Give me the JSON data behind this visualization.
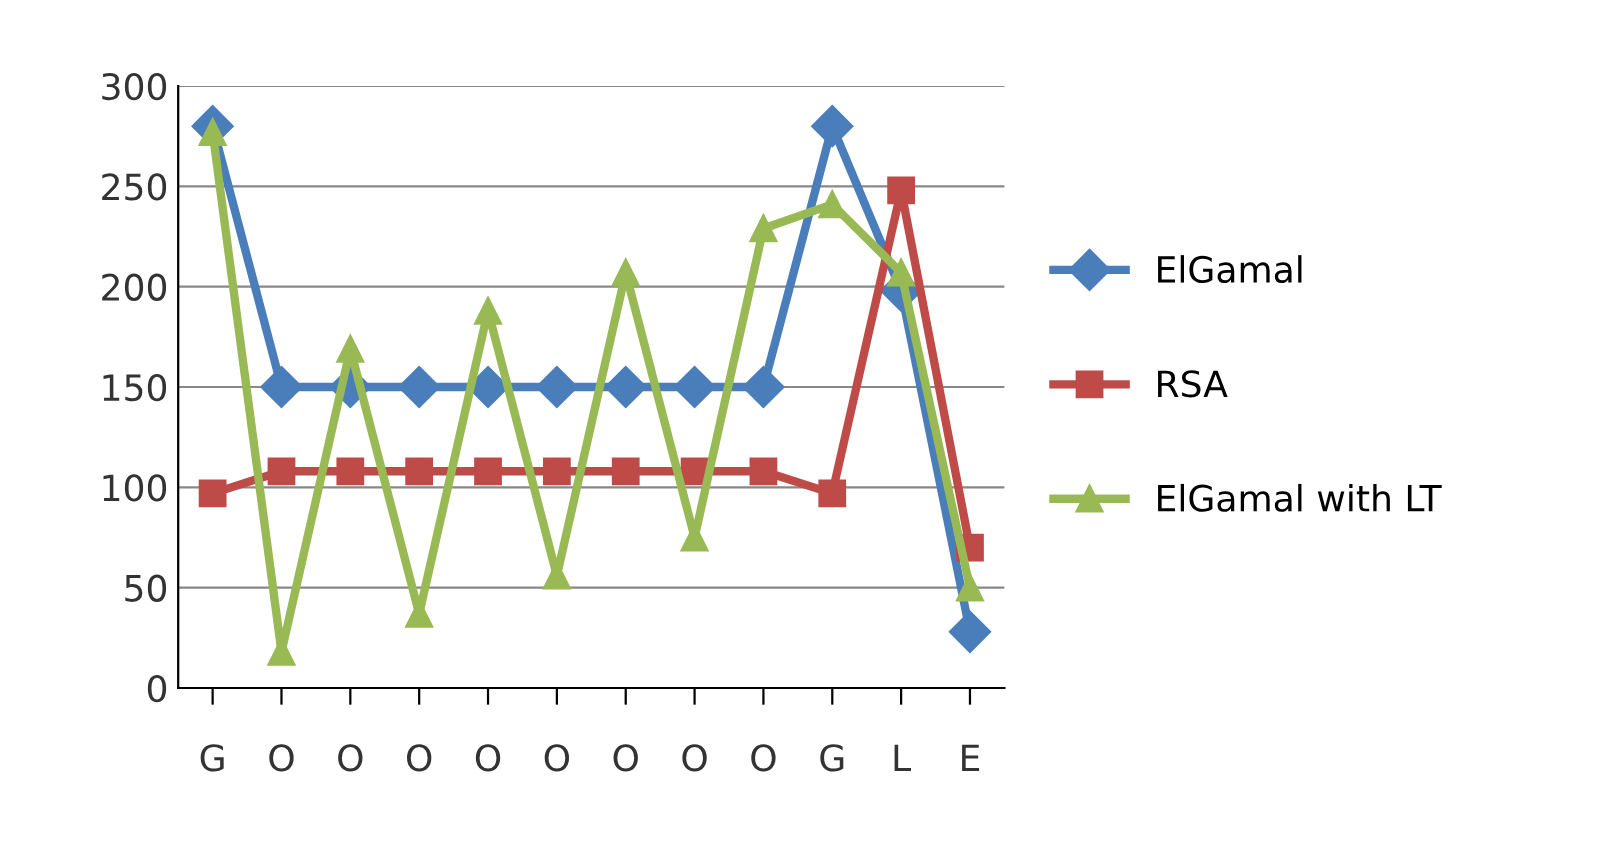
{
  "chart_data": {
    "type": "line",
    "categories": [
      "G",
      "O",
      "O",
      "O",
      "O",
      "O",
      "O",
      "O",
      "O",
      "G",
      "L",
      "E"
    ],
    "series": [
      {
        "name": "ElGamal",
        "color": "#4a7ebb",
        "marker": "diamond",
        "values": [
          280,
          150,
          150,
          150,
          150,
          150,
          150,
          150,
          150,
          280,
          198,
          28
        ]
      },
      {
        "name": "RSA",
        "color": "#be4b48",
        "marker": "square",
        "values": [
          97,
          108,
          108,
          108,
          108,
          108,
          108,
          108,
          108,
          97,
          248,
          70
        ]
      },
      {
        "name": "ElGamal with LT",
        "color": "#98b954",
        "marker": "triangle",
        "values": [
          277,
          18,
          169,
          37,
          188,
          56,
          207,
          75,
          229,
          241,
          207,
          50
        ]
      }
    ],
    "ylim": [
      0,
      300
    ],
    "yticks": [
      0,
      50,
      100,
      150,
      200,
      250,
      300
    ],
    "grid": "y",
    "legend": "right"
  }
}
